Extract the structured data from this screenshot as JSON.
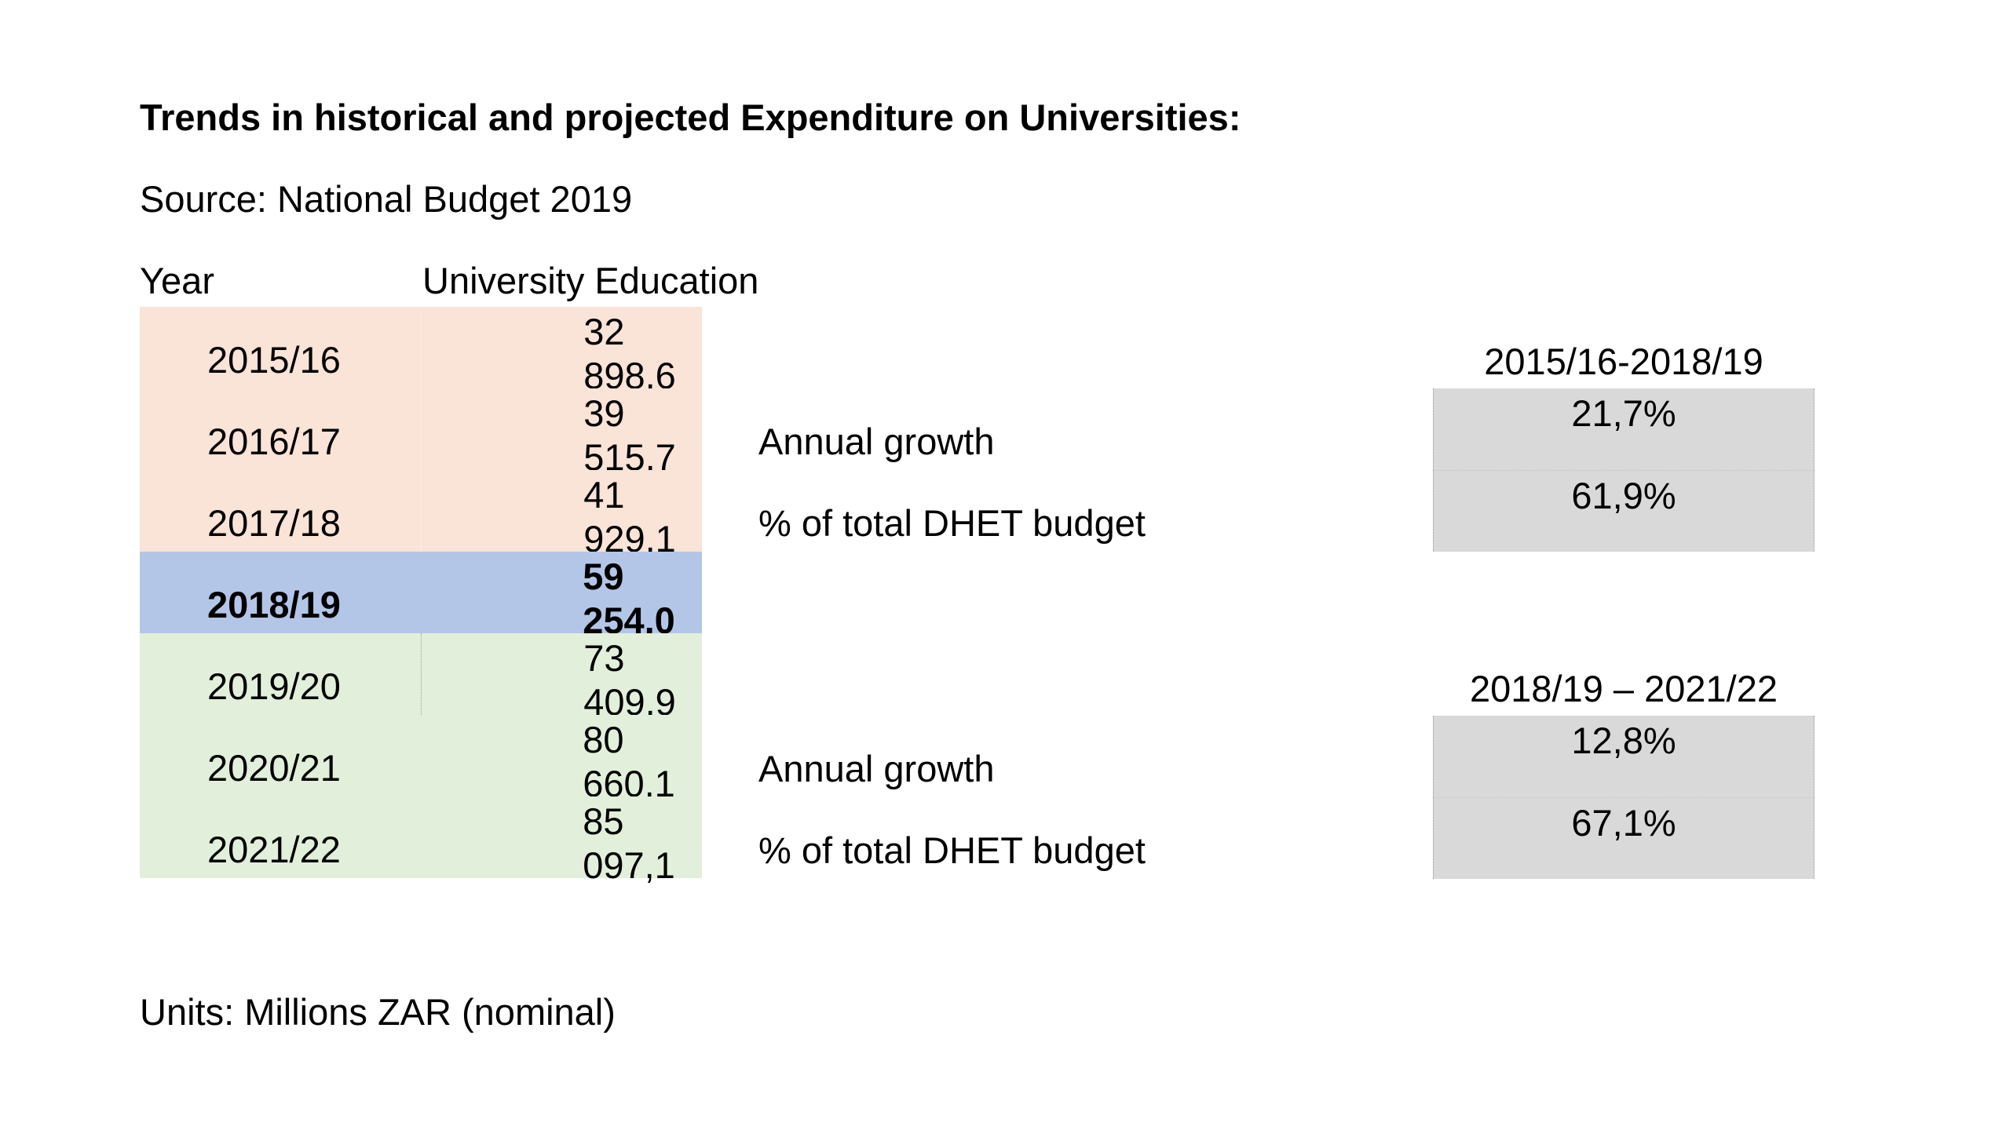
{
  "title": "Trends in historical and projected Expenditure on Universities:",
  "source": "Source: National Budget 2019",
  "table": {
    "header_year": "Year",
    "header_value": "University Education",
    "rows": [
      {
        "year": "2015/16",
        "value": "32 898,6"
      },
      {
        "year": "2016/17",
        "value": "39 515,7"
      },
      {
        "year": "2017/18",
        "value": "41 929,1"
      },
      {
        "year": "2018/19",
        "value": "59 254,0"
      },
      {
        "year": "2019/20",
        "value": "73 409,9"
      },
      {
        "year": "2020/21",
        "value": "80 660,1"
      },
      {
        "year": "2021/22",
        "value": "85 097,1"
      }
    ]
  },
  "historical": {
    "period": "2015/16-2018/19",
    "growth_label": "Annual growth",
    "growth_value": "21,7%",
    "share_label": "% of total DHET budget",
    "share_value": "61,9%"
  },
  "projected": {
    "period": "2018/19 – 2021/22",
    "growth_label": "Annual growth",
    "growth_value": "12,8%",
    "share_label": "% of total DHET budget",
    "share_value": "67,1%"
  },
  "units": "Units: Millions ZAR (nominal)",
  "colors": {
    "historical": "#fae3d7",
    "base_year": "#b4c6e7",
    "projected": "#e2efda",
    "summary_box": "#d9d9d9"
  }
}
